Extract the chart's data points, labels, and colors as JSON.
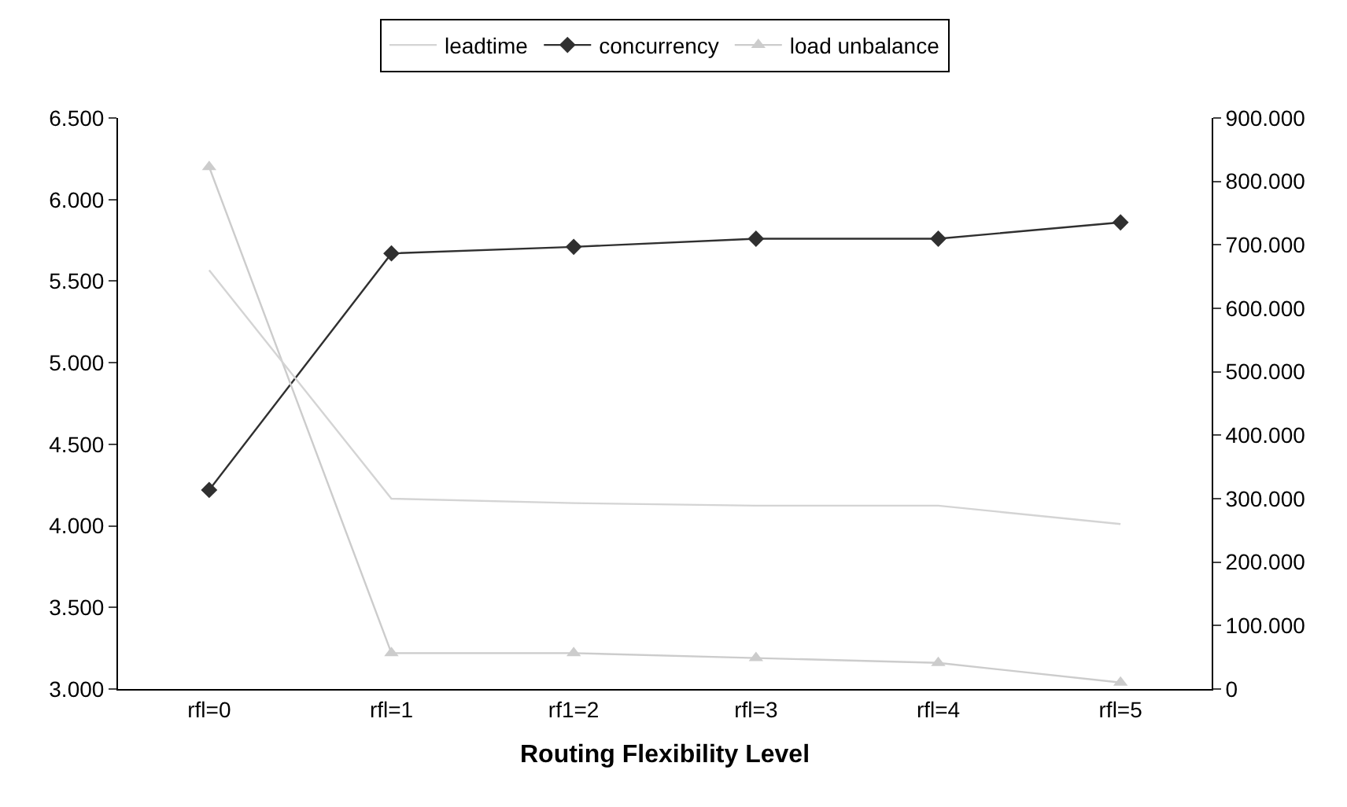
{
  "chart_data": {
    "type": "line",
    "xlabel": "Routing Flexibility Level",
    "categories": [
      "rfl=0",
      "rfl=1",
      "rf1=2",
      "rfl=3",
      "rfl=4",
      "rfl=5"
    ],
    "series": [
      {
        "name": "leadtime",
        "color": "#d4d4d4",
        "axis": "y2",
        "marker": "none",
        "values": [
          660000,
          300000,
          293000,
          289000,
          289000,
          260000
        ]
      },
      {
        "name": "concurrency",
        "color": "#303030",
        "marker": "diamond",
        "values": [
          4220,
          5670,
          5710,
          5760,
          5760,
          5860
        ]
      },
      {
        "name": "load unbalance",
        "color": "#cccccc",
        "marker": "triangle",
        "values": [
          6200,
          3220,
          3220,
          3190,
          3160,
          3040
        ]
      }
    ],
    "ylim": [
      3000,
      6500
    ],
    "yticks": [
      {
        "value": 3000,
        "label": "3.000"
      },
      {
        "value": 3500,
        "label": "3.500"
      },
      {
        "value": 4000,
        "label": "4.000"
      },
      {
        "value": 4500,
        "label": "4.500"
      },
      {
        "value": 5000,
        "label": "5.000"
      },
      {
        "value": 5500,
        "label": "5.500"
      },
      {
        "value": 6000,
        "label": "6.000"
      },
      {
        "value": 6500,
        "label": "6.500"
      }
    ],
    "y2lim": [
      0,
      900000
    ],
    "y2ticks": [
      0,
      {
        "value": 100000,
        "label": "100.000"
      },
      {
        "value": 200000,
        "label": "200.000"
      },
      {
        "value": 300000,
        "label": "300.000"
      },
      {
        "value": 400000,
        "label": "400.000"
      },
      {
        "value": 500000,
        "label": "500.000"
      },
      {
        "value": 600000,
        "label": "600.000"
      },
      {
        "value": 700000,
        "label": "700.000"
      },
      {
        "value": 800000,
        "label": "800.000"
      },
      {
        "value": 900000,
        "label": "900.000"
      }
    ],
    "legend": "top",
    "line_style": "solid"
  }
}
